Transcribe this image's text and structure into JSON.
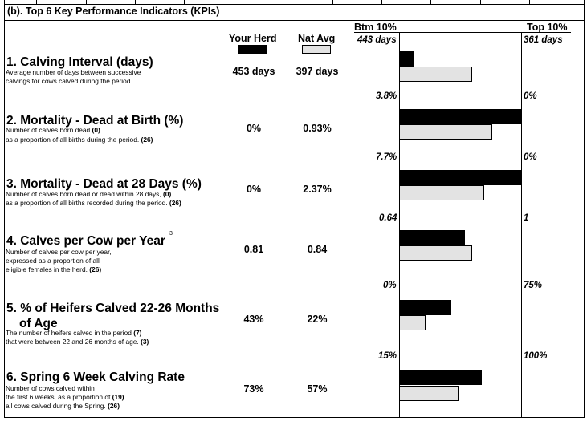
{
  "section_title": "(b). Top 6 Key Performance Indicators (KPIs)",
  "columns": {
    "your_herd": "Your Herd",
    "nat_avg": "Nat Avg",
    "btm": "Btm 10%",
    "top": "Top 10%"
  },
  "colors": {
    "your_herd": "#000000",
    "nat_avg": "#e3e3e3"
  },
  "kpis": [
    {
      "title": "1. Calving Interval (days)",
      "desc": [
        "Average number of days between successive",
        "calvings for cows calved during the period."
      ],
      "your_herd": "453 days",
      "nat_avg": "397 days",
      "btm": "443 days",
      "top": "361 days",
      "herd_frac": 0.12,
      "nat_frac": 0.6
    },
    {
      "title": "2. Mortality - Dead at Birth (%)",
      "desc": [
        "Number of calves born dead",
        "as a proportion of all births during the period."
      ],
      "desc_counts": [
        "(0)",
        "(26)"
      ],
      "your_herd": "0%",
      "nat_avg": "0.93%",
      "btm": "3.8%",
      "top": "0%",
      "herd_frac": 1.0,
      "nat_frac": 0.76
    },
    {
      "title": "3. Mortality - Dead at 28 Days (%)",
      "desc": [
        "Number of calves born dead or dead within 28 days,",
        "as a proportion of all births recorded during the period."
      ],
      "desc_counts": [
        "(0)",
        "(26)"
      ],
      "your_herd": "0%",
      "nat_avg": "2.37%",
      "btm": "7.7%",
      "top": "0%",
      "herd_frac": 1.0,
      "nat_frac": 0.7
    },
    {
      "title": "4. Calves per Cow per Year",
      "superscript": "3",
      "desc": [
        "Number of calves per cow per year,",
        "expressed as a proportion of all",
        "eligible females in the herd."
      ],
      "desc_counts": [
        "(26)"
      ],
      "your_herd": "0.81",
      "nat_avg": "0.84",
      "btm": "0.64",
      "top": "1",
      "herd_frac": 0.54,
      "nat_frac": 0.6
    },
    {
      "title": "5. % of Heifers Calved 22-26 Months",
      "title_line2": "of Age",
      "desc": [
        "The number of heifers calved in the period",
        "that were between 22 and 26 months of age."
      ],
      "desc_counts": [
        "(7)",
        "(3)"
      ],
      "your_herd": "43%",
      "nat_avg": "22%",
      "btm": "0%",
      "top": "75%",
      "herd_frac": 0.43,
      "nat_frac": 0.22
    },
    {
      "title": "6. Spring 6 Week Calving Rate",
      "desc": [
        "Number of cows calved within",
        "the first 6 weeks, as a proportion of",
        "all cows calved during the Spring."
      ],
      "desc_counts": [
        "(19)",
        "(26)"
      ],
      "your_herd": "73%",
      "nat_avg": "57%",
      "btm": "15%",
      "top": "100%",
      "herd_frac": 0.68,
      "nat_frac": 0.49
    }
  ]
}
